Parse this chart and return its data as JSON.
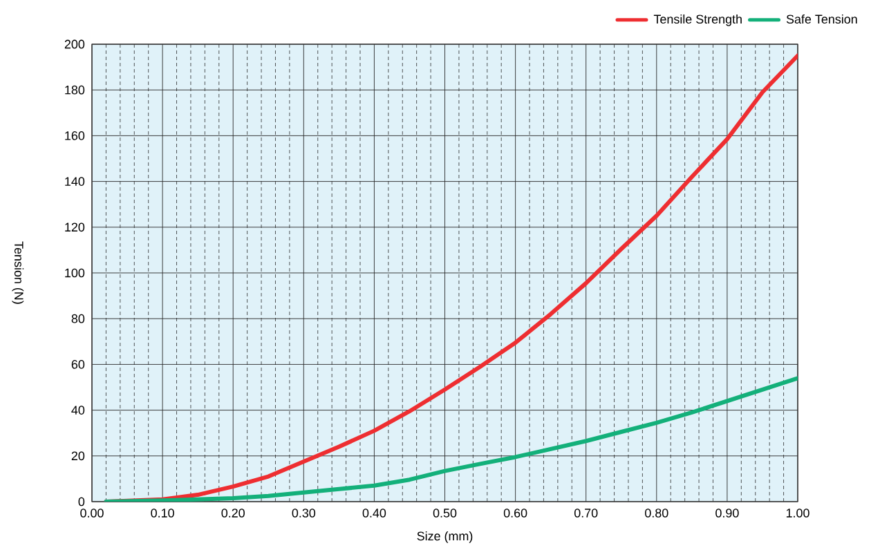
{
  "chart_data": {
    "type": "line",
    "xlabel": "Size (mm)",
    "ylabel": "Tension (N)",
    "x": [
      0.02,
      0.1,
      0.15,
      0.2,
      0.25,
      0.3,
      0.35,
      0.4,
      0.45,
      0.5,
      0.55,
      0.6,
      0.65,
      0.7,
      0.75,
      0.8,
      0.85,
      0.9,
      0.95,
      1.0
    ],
    "series": [
      {
        "name": "Tensile Strength",
        "color": "#ee2e31",
        "values": [
          0,
          1,
          3,
          6.6,
          11,
          17.5,
          24,
          31,
          39.5,
          49,
          59,
          69.5,
          82,
          95.5,
          110.5,
          125,
          142,
          158.5,
          179,
          195
        ]
      },
      {
        "name": "Safe Tension",
        "color": "#13b07a",
        "values": [
          0,
          0.5,
          1,
          1.5,
          2.5,
          4,
          5.5,
          7,
          9.6,
          13.4,
          16.5,
          19.5,
          23,
          26.5,
          30.5,
          34.5,
          39,
          44,
          49,
          54
        ]
      }
    ],
    "xlim": [
      0,
      1
    ],
    "ylim": [
      0,
      200
    ],
    "xticks": [
      {
        "value": 0,
        "label": "0.00"
      },
      {
        "value": 0.02,
        "label": null
      },
      {
        "value": 0.04,
        "label": null
      },
      {
        "value": 0.06,
        "label": null
      },
      {
        "value": 0.08,
        "label": null
      },
      {
        "value": 0.1,
        "label": "0.10"
      },
      {
        "value": 0.12,
        "label": null
      },
      {
        "value": 0.14,
        "label": null
      },
      {
        "value": 0.16,
        "label": null
      },
      {
        "value": 0.18,
        "label": null
      },
      {
        "value": 0.2,
        "label": "0.20"
      },
      {
        "value": 0.22,
        "label": null
      },
      {
        "value": 0.24,
        "label": null
      },
      {
        "value": 0.26,
        "label": null
      },
      {
        "value": 0.28,
        "label": null
      },
      {
        "value": 0.3,
        "label": "0.30"
      },
      {
        "value": 0.32,
        "label": null
      },
      {
        "value": 0.34,
        "label": null
      },
      {
        "value": 0.36,
        "label": null
      },
      {
        "value": 0.38,
        "label": null
      },
      {
        "value": 0.4,
        "label": "0.40"
      },
      {
        "value": 0.42,
        "label": null
      },
      {
        "value": 0.44,
        "label": null
      },
      {
        "value": 0.46,
        "label": null
      },
      {
        "value": 0.48,
        "label": null
      },
      {
        "value": 0.5,
        "label": "0.50"
      },
      {
        "value": 0.52,
        "label": null
      },
      {
        "value": 0.54,
        "label": null
      },
      {
        "value": 0.56,
        "label": null
      },
      {
        "value": 0.58,
        "label": null
      },
      {
        "value": 0.6,
        "label": "0.60"
      },
      {
        "value": 0.62,
        "label": null
      },
      {
        "value": 0.64,
        "label": null
      },
      {
        "value": 0.66,
        "label": null
      },
      {
        "value": 0.68,
        "label": null
      },
      {
        "value": 0.7,
        "label": "0.70"
      },
      {
        "value": 0.72,
        "label": null
      },
      {
        "value": 0.74,
        "label": null
      },
      {
        "value": 0.76,
        "label": null
      },
      {
        "value": 0.78,
        "label": null
      },
      {
        "value": 0.8,
        "label": "0.80"
      },
      {
        "value": 0.82,
        "label": null
      },
      {
        "value": 0.84,
        "label": null
      },
      {
        "value": 0.86,
        "label": null
      },
      {
        "value": 0.88,
        "label": null
      },
      {
        "value": 0.9,
        "label": "0.90"
      },
      {
        "value": 0.92,
        "label": null
      },
      {
        "value": 0.94,
        "label": null
      },
      {
        "value": 0.96,
        "label": null
      },
      {
        "value": 0.98,
        "label": null
      },
      {
        "value": 1.0,
        "label": "1.00"
      }
    ],
    "yticks": [
      0,
      20,
      40,
      60,
      80,
      100,
      120,
      140,
      160,
      180,
      200
    ],
    "grid": true,
    "legend": "top right",
    "marker": "none",
    "line_style": "solid"
  }
}
